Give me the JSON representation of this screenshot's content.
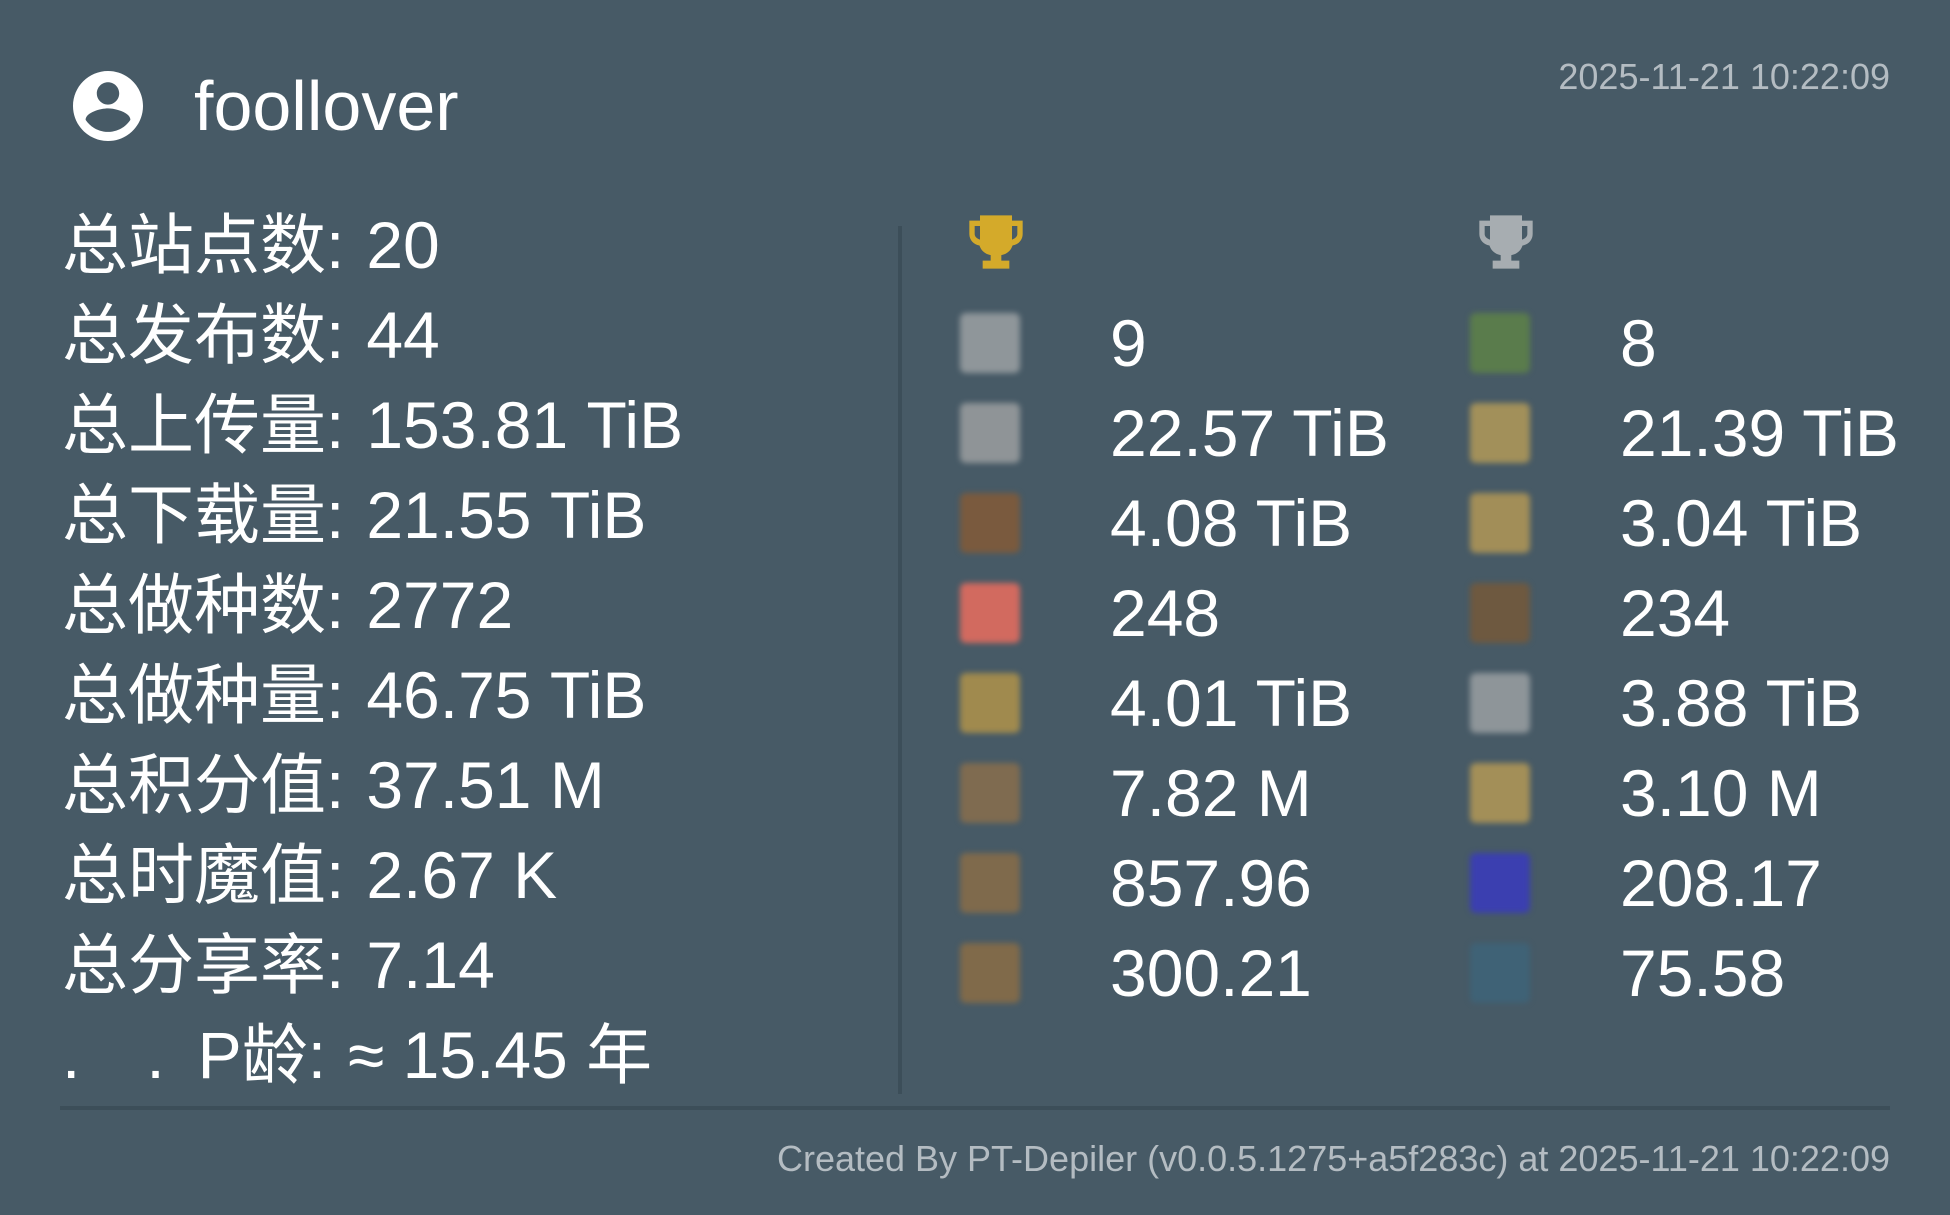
{
  "user": {
    "name": "foollover",
    "icon": "account-circle-icon"
  },
  "timestamp": "2025-11-21 10:22:09",
  "totals": [
    {
      "label": "总站点数",
      "value": "20"
    },
    {
      "label": "总发布数",
      "value": "44"
    },
    {
      "label": "总上传量",
      "value": "153.81 TiB"
    },
    {
      "label": "总下载量",
      "value": "21.55 TiB"
    },
    {
      "label": "总做种数",
      "value": "2772"
    },
    {
      "label": "总做种量",
      "value": "46.75 TiB"
    },
    {
      "label": "总积分值",
      "value": "37.51 M"
    },
    {
      "label": "总时魔值",
      "value": "2.67 K"
    },
    {
      "label": "总分享率",
      "value": "7.14"
    },
    {
      "label": ". . P龄",
      "value": "≈ 15.45 年"
    }
  ],
  "first_place": {
    "icon": "gold-trophy-icon",
    "color": "#d4aa2a",
    "rows": [
      {
        "value": "9",
        "icon_color": "#8f969a"
      },
      {
        "value": "22.57 TiB",
        "icon_color": "#8f9497"
      },
      {
        "value": "4.08 TiB",
        "icon_color": "#7a5a3e"
      },
      {
        "value": "248",
        "icon_color": "#d26a5f"
      },
      {
        "value": "4.01 TiB",
        "icon_color": "#a08a4e"
      },
      {
        "value": "7.82 M",
        "icon_color": "#7f6b50"
      },
      {
        "value": "857.96",
        "icon_color": "#7f6a4c"
      },
      {
        "value": "300.21",
        "icon_color": "#806a4a"
      }
    ]
  },
  "second_place": {
    "icon": "silver-trophy-icon",
    "color": "#a7adb1",
    "rows": [
      {
        "value": "8",
        "icon_color": "#5a7c4c"
      },
      {
        "value": "21.39 TiB",
        "icon_color": "#a2905a"
      },
      {
        "value": "3.04 TiB",
        "icon_color": "#a28e58"
      },
      {
        "value": "234",
        "icon_color": "#6e5940"
      },
      {
        "value": "3.88 TiB",
        "icon_color": "#8e9599"
      },
      {
        "value": "3.10 M",
        "icon_color": "#a38f58"
      },
      {
        "value": "208.17",
        "icon_color": "#3b3fb0"
      },
      {
        "value": "75.58",
        "icon_color": "#3f6276"
      }
    ]
  },
  "footer": "Created By PT-Depiler (v0.0.5.1275+a5f283c) at 2025-11-21 10:22:09",
  "colors": {
    "background": "#475a66",
    "muted_text": "#b4bcc2",
    "divider": "#3c4e59"
  }
}
